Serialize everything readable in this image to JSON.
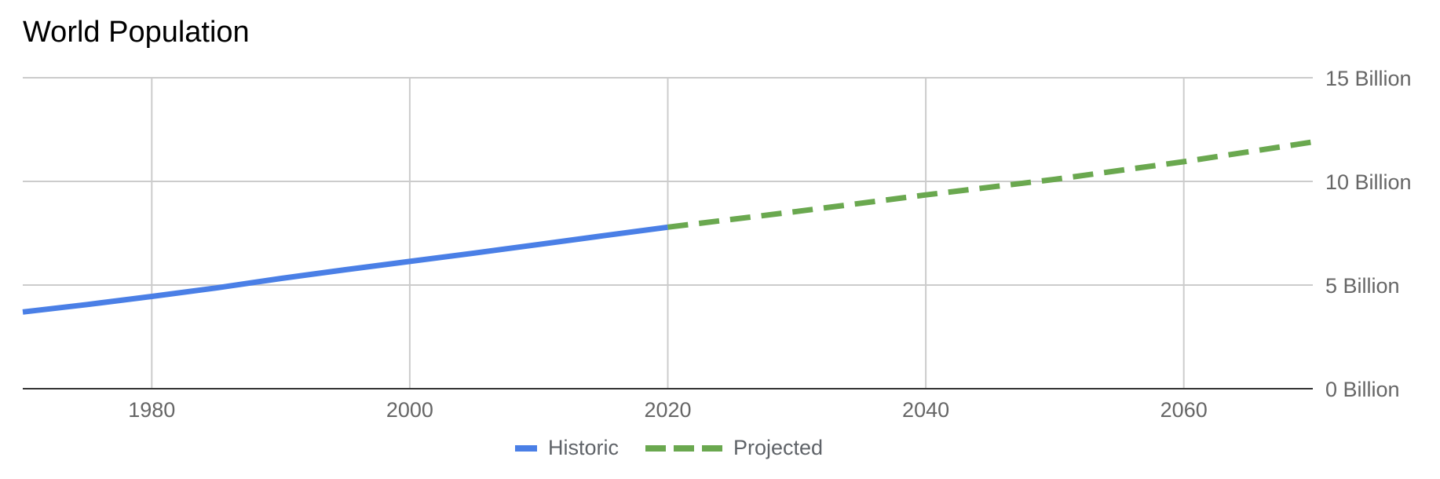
{
  "chart_data": {
    "type": "line",
    "title": "World Population",
    "xlabel": "",
    "ylabel": "",
    "xlim": [
      1970,
      2070
    ],
    "ylim": [
      0,
      15
    ],
    "x_ticks": [
      1980,
      2000,
      2020,
      2040,
      2060
    ],
    "y_ticks": [
      0,
      5,
      10,
      15
    ],
    "y_tick_labels": [
      "0 Billion",
      "5 Billion",
      "10 Billion",
      "15 Billion"
    ],
    "grid": true,
    "legend_position": "bottom",
    "series": [
      {
        "name": "Historic",
        "color": "#4a7fe6",
        "style": "solid",
        "x": [
          1970,
          1975,
          1980,
          1985,
          1990,
          1995,
          2000,
          2005,
          2010,
          2015,
          2020
        ],
        "y": [
          3.7,
          4.06,
          4.45,
          4.86,
          5.32,
          5.74,
          6.14,
          6.54,
          6.96,
          7.38,
          7.79
        ]
      },
      {
        "name": "Projected",
        "color": "#6aa84f",
        "style": "dashed",
        "x": [
          2020,
          2030,
          2040,
          2050,
          2060,
          2070
        ],
        "y": [
          7.79,
          8.55,
          9.35,
          10.1,
          10.95,
          11.9
        ]
      }
    ]
  }
}
